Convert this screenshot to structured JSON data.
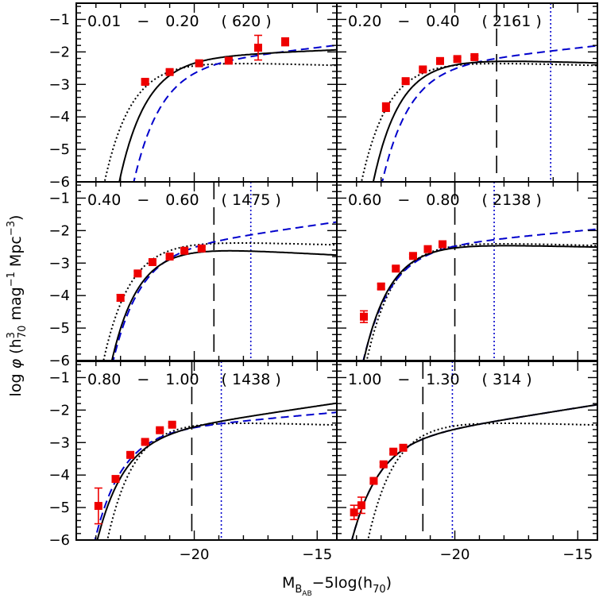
{
  "chart_data": {
    "type": "scatter",
    "xlabel": "M_B_AB −5log(h_70)",
    "xlabel_parts": {
      "m": "M",
      "sub1": "B",
      "sub2": "AB",
      "rest": "−5log(h",
      "sub3": "70",
      "close": ")"
    },
    "ylabel": "log φ (h³_70 mag⁻¹ Mpc⁻³)",
    "ylabel_parts": {
      "main": "log ",
      "phi": "φ",
      "open": "   (h",
      "sup": "3",
      "sub": "70",
      "rest": " mag",
      "sup2": "−1",
      "mpc": " Mpc",
      "sup3": "−3",
      "close": ")"
    },
    "xlim": [
      -24.8,
      -14.2
    ],
    "ylim": [
      -6.0,
      -0.5
    ],
    "x_ticks": [
      -20,
      -15
    ],
    "y_ticks": [
      -6,
      -5,
      -4,
      -3,
      -2,
      -1
    ],
    "layout": {
      "rows": 3,
      "cols": 2
    },
    "colors": {
      "points": "#ee0000",
      "model_a": "#000000",
      "model_b": "#0000cc",
      "model_c": "#000000",
      "marker_dash": "#000000",
      "marker_dot": "#0000cc"
    },
    "panels": [
      {
        "label": {
          "zlo": "0.01",
          "dash": "−",
          "zhi": "0.20",
          "count": "( 620 )"
        },
        "points": [
          {
            "x": -22.0,
            "y": -2.92,
            "err": 0.07
          },
          {
            "x": -21.0,
            "y": -2.62,
            "err": 0.07
          },
          {
            "x": -19.8,
            "y": -2.35,
            "err": 0.06
          },
          {
            "x": -18.6,
            "y": -2.27,
            "err": 0.06
          },
          {
            "x": -17.4,
            "y": -1.87,
            "err": 0.38
          },
          {
            "x": -16.3,
            "y": -1.69,
            "err": 0.12
          }
        ],
        "vline_dash": null,
        "vline_dot": null,
        "model_a": {
          "mstar": -20.7,
          "phistar": 0.0078,
          "alpha": -1.08
        },
        "model_b": {
          "mstar": -20.2,
          "phistar": 0.0052,
          "alpha": -1.22
        },
        "model_c": {
          "mstar": -21.3,
          "phistar": 0.0058,
          "alpha": -0.95
        }
      },
      {
        "label": {
          "zlo": "0.20",
          "dash": "−",
          "zhi": "0.40",
          "count": "( 2161 )"
        },
        "points": [
          {
            "x": -22.8,
            "y": -3.7,
            "err": 0.13
          },
          {
            "x": -22.0,
            "y": -2.9,
            "err": 0.06
          },
          {
            "x": -21.3,
            "y": -2.54,
            "err": 0.05
          },
          {
            "x": -20.6,
            "y": -2.28,
            "err": 0.05
          },
          {
            "x": -19.9,
            "y": -2.22,
            "err": 0.05
          },
          {
            "x": -19.2,
            "y": -2.16,
            "err": 0.05
          }
        ],
        "vline_dash": -18.3,
        "vline_dot": -16.1,
        "model_a": {
          "mstar": -20.95,
          "phistar": 0.0068,
          "alpha": -0.95
        },
        "model_b": {
          "mstar": -20.7,
          "phistar": 0.0048,
          "alpha": -1.21
        },
        "model_c": {
          "mstar": -21.45,
          "phistar": 0.0058,
          "alpha": -0.95
        }
      },
      {
        "label": {
          "zlo": "0.40",
          "dash": "−",
          "zhi": "0.60",
          "count": "( 1475 )"
        },
        "points": [
          {
            "x": -23.0,
            "y": -4.07,
            "err": 0.1
          },
          {
            "x": -22.3,
            "y": -3.32,
            "err": 0.07
          },
          {
            "x": -21.7,
            "y": -2.97,
            "err": 0.05
          },
          {
            "x": -21.0,
            "y": -2.8,
            "err": 0.05
          },
          {
            "x": -20.4,
            "y": -2.62,
            "err": 0.05
          },
          {
            "x": -19.7,
            "y": -2.55,
            "err": 0.05
          }
        ],
        "vline_dash": -19.2,
        "vline_dot": -17.7,
        "model_a": {
          "mstar": -21.05,
          "phistar": 0.0036,
          "alpha": -0.9
        },
        "model_b": {
          "mstar": -21.1,
          "phistar": 0.0036,
          "alpha": -1.27
        },
        "model_c": {
          "mstar": -21.35,
          "phistar": 0.0055,
          "alpha": -0.95
        }
      },
      {
        "label": {
          "zlo": "0.60",
          "dash": "−",
          "zhi": "0.80",
          "count": "( 2138 )"
        },
        "points": [
          {
            "x": -23.7,
            "y": -4.65,
            "err": 0.18
          },
          {
            "x": -23.0,
            "y": -3.72,
            "err": 0.08
          },
          {
            "x": -22.4,
            "y": -3.17,
            "err": 0.06
          },
          {
            "x": -21.7,
            "y": -2.78,
            "err": 0.05
          },
          {
            "x": -21.1,
            "y": -2.57,
            "err": 0.05
          },
          {
            "x": -20.5,
            "y": -2.42,
            "err": 0.05
          }
        ],
        "vline_dash": -20.0,
        "vline_dot": -18.4,
        "model_a": {
          "mstar": -21.4,
          "phistar": 0.0044,
          "alpha": -0.96
        },
        "model_b": {
          "mstar": -21.5,
          "phistar": 0.0036,
          "alpha": -1.18
        },
        "model_c": {
          "mstar": -21.25,
          "phistar": 0.0052,
          "alpha": -0.95
        }
      },
      {
        "label": {
          "zlo": "0.80",
          "dash": "−",
          "zhi": "1.00",
          "count": "( 1438 )"
        },
        "points": [
          {
            "x": -23.9,
            "y": -4.95,
            "err": 0.55
          },
          {
            "x": -23.2,
            "y": -4.12,
            "err": 0.08
          },
          {
            "x": -22.6,
            "y": -3.38,
            "err": 0.06
          },
          {
            "x": -22.0,
            "y": -2.98,
            "err": 0.05
          },
          {
            "x": -21.4,
            "y": -2.62,
            "err": 0.05
          },
          {
            "x": -20.9,
            "y": -2.45,
            "err": 0.05
          }
        ],
        "vline_dash": -20.1,
        "vline_dot": -18.9,
        "model_a": {
          "mstar": -21.8,
          "phistar": 0.0025,
          "alpha": -1.28
        },
        "model_b": {
          "mstar": -21.85,
          "phistar": 0.0028,
          "alpha": -1.17
        },
        "model_c": {
          "mstar": -21.2,
          "phistar": 0.0052,
          "alpha": -0.95
        }
      },
      {
        "label": {
          "zlo": "1.00",
          "dash": "−",
          "zhi": "1.30",
          "count": "( 314 )"
        },
        "points": [
          {
            "x": -24.1,
            "y": -5.15,
            "err": 0.22
          },
          {
            "x": -23.8,
            "y": -4.93,
            "err": 0.25
          },
          {
            "x": -23.3,
            "y": -4.18,
            "err": 0.07
          },
          {
            "x": -22.9,
            "y": -3.67,
            "err": 0.06
          },
          {
            "x": -22.5,
            "y": -3.28,
            "err": 0.06
          },
          {
            "x": -22.1,
            "y": -3.16,
            "err": 0.06
          }
        ],
        "vline_dash": -21.3,
        "vline_dot": -20.1,
        "model_a": {
          "mstar": -22.1,
          "phistar": 0.0018,
          "alpha": -1.3
        },
        "model_b": {
          "mstar": -22.1,
          "phistar": 0.0018,
          "alpha": -1.3
        },
        "model_c": {
          "mstar": -21.2,
          "phistar": 0.0052,
          "alpha": -0.95
        }
      }
    ]
  }
}
